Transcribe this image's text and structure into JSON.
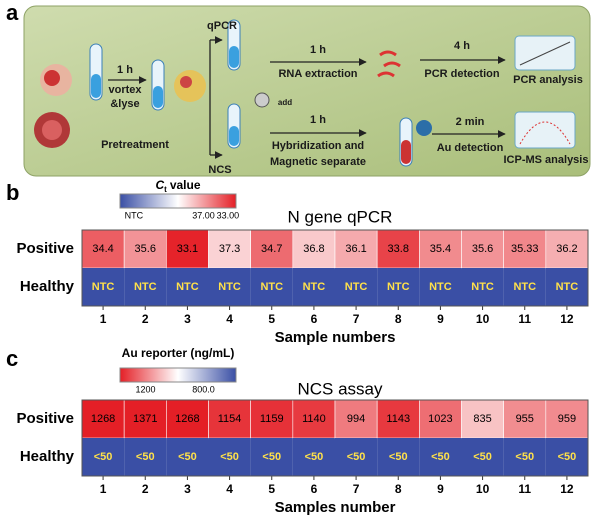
{
  "schematic": {
    "label": "a",
    "step1_time": "1 h",
    "step1_a": "vortex",
    "step1_b": "&lyse",
    "pretreatment": "Pretreatment",
    "qpcr": "qPCR",
    "ncs": "NCS",
    "add": "add",
    "qpcr_time1": "1 h",
    "qpcr_step1": "RNA extraction",
    "qpcr_time2": "4 h",
    "qpcr_step2": "PCR detection",
    "qpcr_result": "PCR analysis",
    "ncs_time1": "1 h",
    "ncs_step1a": "Hybridization and",
    "ncs_step1b": "Magnetic separate",
    "ncs_time2": "2 min",
    "ncs_step2": "Au detection",
    "ncs_result": "ICP-MS analysis"
  },
  "chart_data": [
    {
      "type": "heatmap",
      "panel": "b",
      "title": "N gene qPCR",
      "colorbar_title": {
        "symbol": "C",
        "subscript": "t",
        "text": "value"
      },
      "colorbar_ticks": [
        "NTC",
        {
          "value": 37,
          "label": "37.00"
        },
        {
          "value": 33,
          "label": "33.00"
        }
      ],
      "colors": {
        "high": "#e41f26",
        "mid": "#ffffff",
        "low": "#3a4fa5"
      },
      "rows": [
        "Positive",
        "Healthy"
      ],
      "categories": [
        "1",
        "2",
        "3",
        "4",
        "5",
        "6",
        "7",
        "8",
        "9",
        "10",
        "11",
        "12"
      ],
      "values": [
        34.4,
        35.6,
        33.1,
        37.3,
        34.7,
        36.8,
        36.1,
        33.8,
        35.4,
        35.6,
        35.33,
        36.2
      ],
      "healthy_labels": [
        "NTC",
        "NTC",
        "NTC",
        "NTC",
        "NTC",
        "NTC",
        "NTC",
        "NTC",
        "NTC",
        "NTC",
        "NTC",
        "NTC"
      ],
      "xlabel": "Sample numbers"
    },
    {
      "type": "heatmap",
      "panel": "c",
      "title": "NCS assay",
      "colorbar_title": {
        "text": "Au reporter (ng/mL)"
      },
      "colorbar_ticks": [
        {
          "value": 1200,
          "label": "1200"
        },
        {
          "value": 800,
          "label": "800.0"
        }
      ],
      "colors": {
        "high": "#e41f26",
        "mid": "#ffffff",
        "low": "#3a4fa5"
      },
      "rows": [
        "Positive",
        "Healthy"
      ],
      "categories": [
        "1",
        "2",
        "3",
        "4",
        "5",
        "6",
        "7",
        "8",
        "9",
        "10",
        "11",
        "12"
      ],
      "values": [
        1268,
        1371,
        1268,
        1154,
        1159,
        1140,
        994,
        1143,
        1023,
        835,
        955,
        959
      ],
      "healthy_labels": [
        "<50",
        "<50",
        "<50",
        "<50",
        "<50",
        "<50",
        "<50",
        "<50",
        "<50",
        "<50",
        "<50",
        "<50"
      ],
      "xlabel": "Samples number"
    }
  ]
}
